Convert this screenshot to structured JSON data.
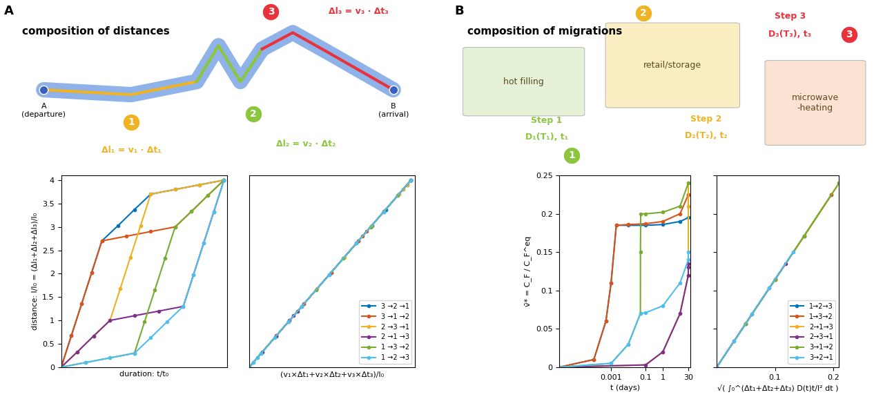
{
  "panels": [
    {
      "label": "A",
      "header": "composition of distances",
      "departure": "A\n(departure)",
      "arrival": "B\n(arrival)",
      "steps": [
        {
          "number": "1",
          "formula": "Δl₁ = v₁ · Δt₁",
          "color": "#f0b323"
        },
        {
          "number": "2",
          "formula": "Δl₂ = v₂ · Δt₂",
          "color": "#8cc63f"
        },
        {
          "number": "3",
          "formula": "Δl₃ = v₃ · Δt₃",
          "color": "#e8323c"
        }
      ]
    },
    {
      "label": "B",
      "header": "composition of migrations",
      "steps": [
        {
          "number": "1",
          "name": "hot filling",
          "step": "Step 1",
          "params": "D₁(T₁), t₁",
          "color": "#8cc63f"
        },
        {
          "number": "2",
          "name": "retail/storage",
          "step": "Step 2",
          "params": "D₂(T₂), t₂",
          "color": "#f0b323"
        },
        {
          "number": "3",
          "name": "microwave\n-heating",
          "step": "Step 3",
          "params": "D₃(T₃), t₃",
          "color": "#e8323c"
        }
      ]
    }
  ],
  "chart_data": [
    {
      "type": "line",
      "xlabel": "duration: t/t₀",
      "ylabel": "distance: l/l₀ = (Δl₁+Δl₂+Δl₃)/l₀",
      "xlim": [
        0,
        1.02
      ],
      "ylim": [
        0,
        4.1
      ],
      "xticks": [],
      "yticks": [
        0,
        0.5,
        1,
        1.5,
        2,
        2.5,
        3,
        3.5,
        4
      ],
      "tick_labels": "y",
      "marker": "o",
      "line_style": "solid",
      "series": [
        {
          "name": "3 →2 →1",
          "color": "#0072bd",
          "x": [
            0,
            0.0625,
            0.125,
            0.1875,
            0.25,
            0.35,
            0.45,
            0.55,
            0.7,
            0.85,
            1.0
          ],
          "values": [
            0,
            0.675,
            1.35,
            2.025,
            2.7,
            3.03,
            3.37,
            3.7,
            3.8,
            3.9,
            4.0
          ]
        },
        {
          "name": "3 →1 →2",
          "color": "#d95319",
          "x": [
            0,
            0.0625,
            0.125,
            0.1875,
            0.25,
            0.4,
            0.55,
            0.7,
            0.8,
            0.9,
            1.0
          ],
          "values": [
            0,
            0.675,
            1.35,
            2.025,
            2.7,
            2.8,
            2.9,
            3.0,
            3.33,
            3.67,
            4.0
          ]
        },
        {
          "name": "2 →3 →1",
          "color": "#edb120",
          "x": [
            0,
            0.1,
            0.2,
            0.3,
            0.3625,
            0.425,
            0.4875,
            0.55,
            0.7,
            0.85,
            1.0
          ],
          "values": [
            0,
            0.33,
            0.67,
            1.0,
            1.675,
            2.35,
            3.025,
            3.7,
            3.8,
            3.9,
            4.0
          ]
        },
        {
          "name": "2 →1 →3",
          "color": "#7e2f8e",
          "x": [
            0,
            0.1,
            0.2,
            0.3,
            0.45,
            0.6,
            0.75,
            0.8125,
            0.875,
            0.9375,
            1.0
          ],
          "values": [
            0,
            0.33,
            0.67,
            1.0,
            1.1,
            1.2,
            1.3,
            1.975,
            2.65,
            3.325,
            4.0
          ]
        },
        {
          "name": "1 →3 →2",
          "color": "#77ac30",
          "x": [
            0,
            0.15,
            0.3,
            0.45,
            0.5125,
            0.575,
            0.6375,
            0.7,
            0.8,
            0.9,
            1.0
          ],
          "values": [
            0,
            0.1,
            0.2,
            0.3,
            0.975,
            1.65,
            2.325,
            3.0,
            3.33,
            3.67,
            4.0
          ]
        },
        {
          "name": "1 →2 →3",
          "color": "#4dbeee",
          "x": [
            0,
            0.15,
            0.3,
            0.45,
            0.55,
            0.65,
            0.75,
            0.8125,
            0.875,
            0.9375,
            1.0
          ],
          "values": [
            0,
            0.1,
            0.2,
            0.3,
            0.63,
            0.97,
            1.3,
            1.975,
            2.65,
            3.325,
            4.0
          ]
        }
      ]
    },
    {
      "type": "line",
      "xlabel": "(v₁×Δt₁+v₂×Δt₂+v₃×Δt₃)/l₀",
      "xlim": [
        0,
        4.1
      ],
      "ylim": [
        0,
        4.1
      ],
      "xticks": [],
      "yticks": [],
      "tick_labels": false,
      "marker": "o",
      "line_style": "solid",
      "legend": "lower right",
      "series": [
        {
          "name": "3 →2 →1",
          "color": "#0072bd",
          "x": [
            0,
            0.675,
            1.35,
            2.025,
            2.7,
            3.03,
            3.37,
            3.7,
            3.8,
            3.9,
            4.0
          ],
          "values": [
            0,
            0.675,
            1.35,
            2.025,
            2.7,
            3.03,
            3.37,
            3.7,
            3.8,
            3.9,
            4.0
          ]
        },
        {
          "name": "3 →1 →2",
          "color": "#d95319",
          "x": [
            0,
            0.675,
            1.35,
            2.025,
            2.7,
            2.8,
            2.9,
            3.0,
            3.33,
            3.67,
            4.0
          ],
          "values": [
            0,
            0.675,
            1.35,
            2.025,
            2.7,
            2.8,
            2.9,
            3.0,
            3.33,
            3.67,
            4.0
          ]
        },
        {
          "name": "2 →3 →1",
          "color": "#edb120",
          "x": [
            0,
            0.33,
            0.67,
            1.0,
            1.675,
            2.35,
            3.025,
            3.7,
            3.8,
            3.9,
            4.0
          ],
          "values": [
            0,
            0.33,
            0.67,
            1.0,
            1.675,
            2.35,
            3.025,
            3.7,
            3.8,
            3.9,
            4.0
          ]
        },
        {
          "name": "2 →1 →3",
          "color": "#7e2f8e",
          "x": [
            0,
            0.33,
            0.67,
            1.0,
            1.1,
            1.2,
            1.3,
            1.975,
            2.65,
            3.325,
            4.0
          ],
          "values": [
            0,
            0.33,
            0.67,
            1.0,
            1.1,
            1.2,
            1.3,
            1.975,
            2.65,
            3.325,
            4.0
          ]
        },
        {
          "name": "1 →3 →2",
          "color": "#77ac30",
          "x": [
            0,
            0.1,
            0.2,
            0.3,
            0.975,
            1.65,
            2.325,
            3.0,
            3.33,
            3.67,
            4.0
          ],
          "values": [
            0,
            0.1,
            0.2,
            0.3,
            0.975,
            1.65,
            2.325,
            3.0,
            3.33,
            3.67,
            4.0
          ]
        },
        {
          "name": "1 →2 →3",
          "color": "#4dbeee",
          "x": [
            0,
            0.1,
            0.2,
            0.3,
            0.63,
            0.97,
            1.3,
            1.975,
            2.65,
            3.325,
            4.0
          ],
          "values": [
            0,
            0.1,
            0.2,
            0.3,
            0.63,
            0.97,
            1.3,
            1.975,
            2.65,
            3.325,
            4.0
          ]
        }
      ]
    },
    {
      "type": "line",
      "xlabel": "t (days)",
      "ylabel": "v̄* = C_F / C_F^eq",
      "log": "x",
      "xlim": [
        1e-06,
        40
      ],
      "ylim": [
        0,
        0.25
      ],
      "xticks": [
        0.001,
        0.1,
        1,
        30
      ],
      "yticks": [
        0,
        0.05,
        0.1,
        0.15,
        0.2,
        0.25
      ],
      "marker": "o",
      "line_style": "solid",
      "series": [
        {
          "name": "1→2→3",
          "color": "#0072bd",
          "x": [
            1e-06,
            0.0001,
            0.0005,
            0.001,
            0.002,
            0.01,
            0.1,
            1,
            10,
            30,
            30.05
          ],
          "values": [
            0,
            0.01,
            0.06,
            0.11,
            0.185,
            0.185,
            0.185,
            0.186,
            0.19,
            0.195,
            0.225
          ]
        },
        {
          "name": "1→3→2",
          "color": "#d95319",
          "x": [
            1e-06,
            0.0001,
            0.0005,
            0.001,
            0.002,
            0.01,
            0.1,
            1,
            10,
            30
          ],
          "values": [
            0,
            0.01,
            0.06,
            0.11,
            0.185,
            0.186,
            0.187,
            0.19,
            0.2,
            0.225
          ]
        },
        {
          "name": "2→1→3",
          "color": "#edb120",
          "x": [
            1e-06,
            0.1,
            1,
            10,
            30,
            30.002,
            30.05
          ],
          "values": [
            0,
            0.003,
            0.02,
            0.07,
            0.12,
            0.21,
            0.24
          ]
        },
        {
          "name": "2→3→1",
          "color": "#7e2f8e",
          "x": [
            1e-06,
            0.1,
            1,
            10,
            30,
            30.05,
            30.052
          ],
          "values": [
            0,
            0.003,
            0.02,
            0.07,
            0.12,
            0.13,
            0.135
          ]
        },
        {
          "name": "3→1→2",
          "color": "#77ac30",
          "x": [
            1e-06,
            0.001,
            0.01,
            0.05,
            0.0505,
            0.052,
            0.1,
            1,
            10,
            30
          ],
          "values": [
            0,
            0.005,
            0.03,
            0.07,
            0.15,
            0.2,
            0.2,
            0.202,
            0.21,
            0.24
          ]
        },
        {
          "name": "3→2→1",
          "color": "#4dbeee",
          "x": [
            1e-06,
            0.001,
            0.01,
            0.05,
            0.1,
            1,
            10,
            30,
            30.002
          ],
          "values": [
            0,
            0.005,
            0.03,
            0.07,
            0.071,
            0.08,
            0.11,
            0.14,
            0.15
          ]
        }
      ]
    },
    {
      "type": "line",
      "xlabel": "√( ∫₀^(Δt₁+Δt₂+Δt₃) D(t)t/l² dt )",
      "xlim": [
        0,
        0.21
      ],
      "ylim": [
        0,
        0.25
      ],
      "xticks": [
        0.1,
        0.2
      ],
      "yticks": [
        0,
        0.05,
        0.1,
        0.15,
        0.2,
        0.25
      ],
      "tick_labels": "x",
      "marker": "o",
      "line_style": "solid",
      "legend": "lower right",
      "series": [
        {
          "name": "1→2→3",
          "color": "#0072bd",
          "x": [
            0,
            0.05,
            0.1,
            0.15,
            0.197
          ],
          "values": [
            0,
            0.057,
            0.114,
            0.171,
            0.225
          ]
        },
        {
          "name": "1→3→2",
          "color": "#d95319",
          "x": [
            0,
            0.05,
            0.1,
            0.15,
            0.197
          ],
          "values": [
            0,
            0.057,
            0.114,
            0.171,
            0.225
          ]
        },
        {
          "name": "2→1→3",
          "color": "#edb120",
          "x": [
            0,
            0.05,
            0.1,
            0.15,
            0.21
          ],
          "values": [
            0,
            0.057,
            0.114,
            0.171,
            0.24
          ]
        },
        {
          "name": "2→3→1",
          "color": "#7e2f8e",
          "x": [
            0,
            0.03,
            0.06,
            0.09,
            0.118
          ],
          "values": [
            0,
            0.034,
            0.069,
            0.103,
            0.135
          ]
        },
        {
          "name": "3→1→2",
          "color": "#77ac30",
          "x": [
            0,
            0.05,
            0.1,
            0.15,
            0.21
          ],
          "values": [
            0,
            0.057,
            0.114,
            0.171,
            0.24
          ]
        },
        {
          "name": "3→2→1",
          "color": "#4dbeee",
          "x": [
            0,
            0.03,
            0.06,
            0.09,
            0.131
          ],
          "values": [
            0,
            0.034,
            0.069,
            0.103,
            0.15
          ]
        }
      ]
    }
  ]
}
